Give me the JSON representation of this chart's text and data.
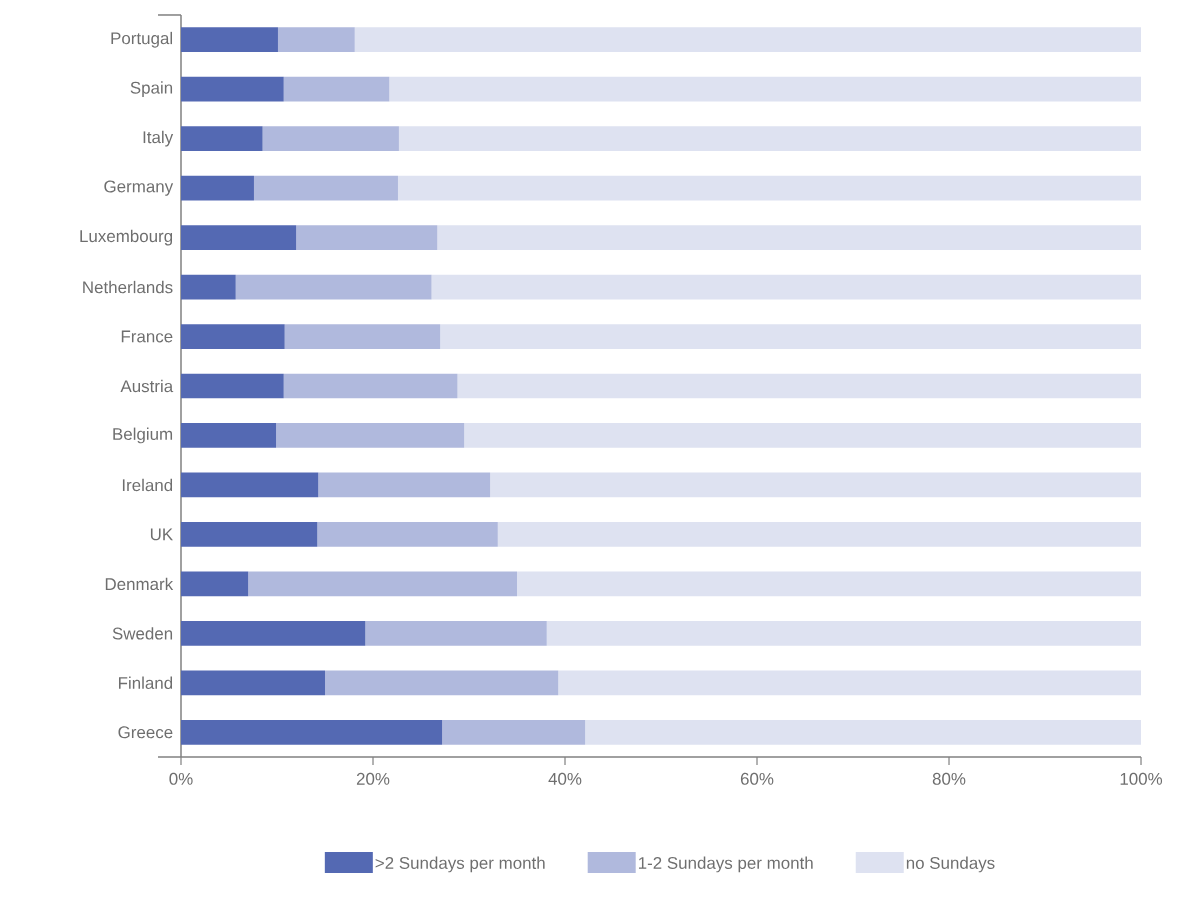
{
  "chart_data": {
    "type": "bar",
    "orientation": "horizontal",
    "stacked": true,
    "categories": [
      "Portugal",
      "Spain",
      "Italy",
      "Germany",
      "Luxembourg",
      "Netherlands",
      "France",
      "Austria",
      "Belgium",
      "Ireland",
      "UK",
      "Denmark",
      "Sweden",
      "Finland",
      "Greece"
    ],
    "series": [
      {
        "name": ">2 Sundays per month",
        "color": "#5469b3",
        "values": [
          10.1,
          10.7,
          8.5,
          7.6,
          12,
          5.7,
          10.8,
          10.7,
          9.9,
          14.3,
          14.2,
          7,
          19.2,
          15,
          27.2
        ]
      },
      {
        "name": "1-2 Sundays per month",
        "color": "#b0b9dd",
        "values": [
          8,
          11,
          14.2,
          15,
          14.7,
          20.4,
          16.2,
          18.1,
          19.6,
          17.9,
          18.8,
          28,
          18.9,
          24.3,
          14.9
        ]
      },
      {
        "name": "no Sundays",
        "color": "#dee2f1",
        "values": [
          81.9,
          78.3,
          77.3,
          77.4,
          73.3,
          73.9,
          73,
          71.2,
          70.5,
          67.8,
          67,
          65,
          61.9,
          60.7,
          57.9
        ]
      }
    ],
    "xlim": [
      0,
      100
    ],
    "xticks": [
      {
        "value": 0,
        "label": "0%"
      },
      {
        "value": 20,
        "label": "20%"
      },
      {
        "value": 40,
        "label": "40%"
      },
      {
        "value": 60,
        "label": "60%"
      },
      {
        "value": 80,
        "label": "80%"
      },
      {
        "value": 100,
        "label": "100%"
      }
    ],
    "grid": false,
    "legend": "bottom"
  }
}
